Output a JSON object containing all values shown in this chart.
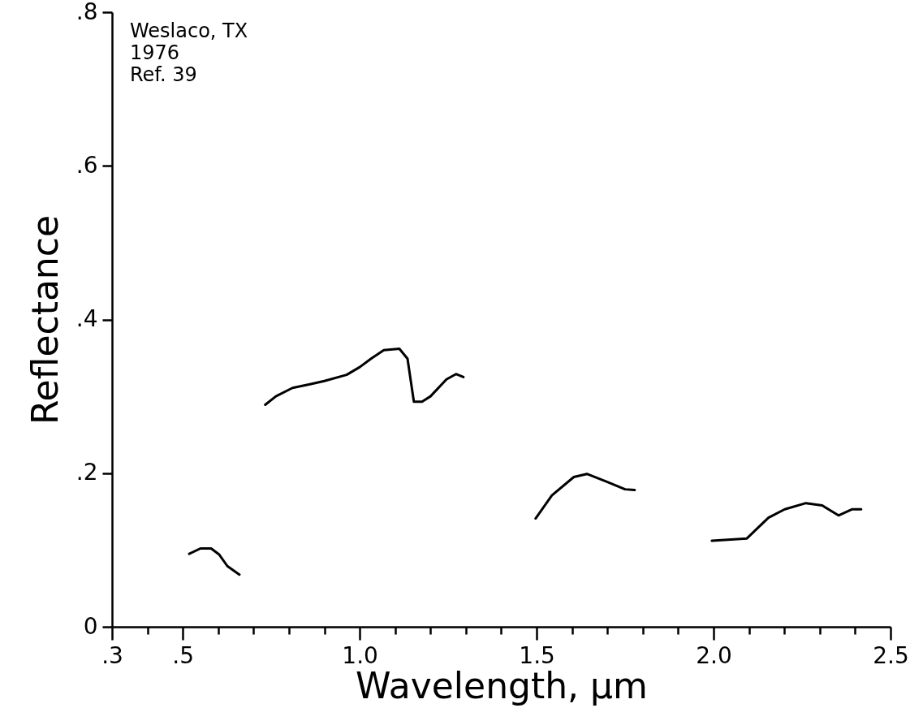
{
  "chart_data": {
    "type": "line",
    "xlabel": "Wavelength, µm",
    "ylabel": "Reflectance",
    "annotations": [
      "Weslaco, TX",
      "1976",
      "Ref. 39"
    ],
    "xlim": [
      0.3,
      2.5
    ],
    "ylim": [
      0,
      0.8
    ],
    "xticks": [
      {
        "value": 0.3,
        "label": ".3"
      },
      {
        "value": 0.4,
        "label": null
      },
      {
        "value": 0.5,
        "label": ".5"
      },
      {
        "value": 0.6,
        "label": null
      },
      {
        "value": 0.7,
        "label": null
      },
      {
        "value": 0.8,
        "label": null
      },
      {
        "value": 0.9,
        "label": null
      },
      {
        "value": 1.0,
        "label": "1.0"
      },
      {
        "value": 1.1,
        "label": null
      },
      {
        "value": 1.2,
        "label": null
      },
      {
        "value": 1.3,
        "label": null
      },
      {
        "value": 1.4,
        "label": null
      },
      {
        "value": 1.5,
        "label": "1.5"
      },
      {
        "value": 1.6,
        "label": null
      },
      {
        "value": 1.7,
        "label": null
      },
      {
        "value": 1.8,
        "label": null
      },
      {
        "value": 1.9,
        "label": null
      },
      {
        "value": 2.0,
        "label": "2.0"
      },
      {
        "value": 2.1,
        "label": null
      },
      {
        "value": 2.2,
        "label": null
      },
      {
        "value": 2.3,
        "label": null
      },
      {
        "value": 2.4,
        "label": null
      },
      {
        "value": 2.5,
        "label": "2.5"
      }
    ],
    "yticks": [
      0,
      {
        "value": 0.2,
        "label": ".2"
      },
      {
        "value": 0.4,
        "label": ".4"
      },
      {
        "value": 0.6,
        "label": ".6"
      },
      {
        "value": 0.8,
        "label": ".8"
      }
    ],
    "grid": false,
    "marker": "none",
    "line_style": "solid",
    "series": [
      {
        "color": "#000000",
        "x": [
          0.518,
          0.55,
          0.58,
          0.603,
          0.626,
          0.66,
          0.7,
          0.733,
          0.763,
          0.81,
          0.862,
          0.9,
          0.963,
          1.0,
          1.032,
          1.068,
          1.112,
          1.135,
          1.153,
          1.176,
          1.2,
          1.245,
          1.272,
          1.293,
          1.4,
          1.497,
          1.543,
          1.605,
          1.642,
          1.697,
          1.75,
          1.777,
          1.9,
          1.995,
          2.094,
          2.155,
          2.201,
          2.261,
          2.307,
          2.353,
          2.392,
          2.417
        ],
        "values": [
          0.095,
          0.102,
          0.102,
          0.094,
          0.079,
          0.068,
          null,
          0.289,
          0.3,
          0.311,
          0.316,
          0.32,
          0.328,
          0.338,
          0.349,
          0.36,
          0.362,
          0.349,
          0.293,
          0.293,
          0.3,
          0.322,
          0.329,
          0.325,
          null,
          0.141,
          0.171,
          0.195,
          0.199,
          0.189,
          0.179,
          0.178,
          null,
          0.112,
          0.115,
          0.142,
          0.153,
          0.161,
          0.158,
          0.145,
          0.153,
          0.153
        ]
      }
    ]
  }
}
